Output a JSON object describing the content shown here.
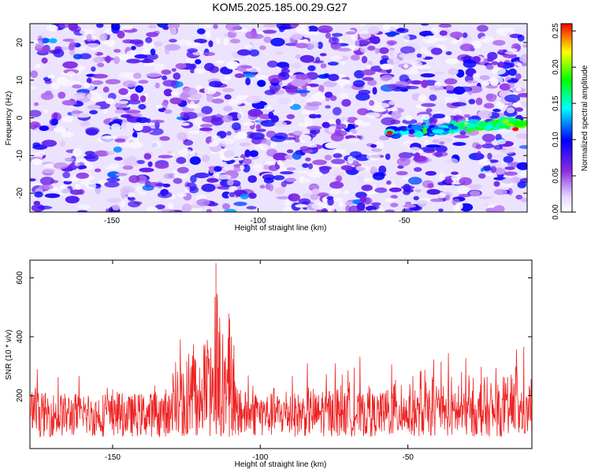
{
  "title": "KOM5.2025.185.00.29.G27",
  "colors": {
    "snr_line": "#ee2222",
    "colormap": [
      "#ffffff",
      "#8a2be2",
      "#0000ff",
      "#00ffff",
      "#00ff00",
      "#ffff00",
      "#ff0000"
    ]
  },
  "chart_data": [
    {
      "type": "heatmap",
      "xlabel": "Height of straight line (km)",
      "ylabel": "Frequency (Hz)",
      "xlim": [
        -178,
        -8
      ],
      "ylim": [
        -25,
        25
      ],
      "xticks": [
        -150,
        -100,
        -50
      ],
      "yticks": [
        -20,
        -10,
        0,
        10,
        20
      ],
      "colorbar": {
        "label": "Normalized spectral amplitude",
        "range": [
          0.0,
          0.26
        ],
        "ticks": [
          "0.00",
          "0.05",
          "0.10",
          "0.15",
          "0.20",
          "0.25"
        ],
        "tick_values": [
          0.0,
          0.05,
          0.1,
          0.15,
          0.2,
          0.25
        ]
      },
      "features": [
        {
          "x_range": [
            -55,
            -8
          ],
          "frequency": -3,
          "peak_x": -12,
          "peak_value": 0.26,
          "trend": "frequency rising from about -4 Hz to 0 Hz"
        }
      ],
      "background_level": [
        0.02,
        0.1
      ]
    },
    {
      "type": "line",
      "xlabel": "Height of straight line (km)",
      "ylabel": "SNR (10 * v/v)",
      "xlim": [
        -178,
        -8
      ],
      "ylim": [
        20,
        660
      ],
      "xticks": [
        -150,
        -100,
        -50
      ],
      "yticks": [
        200,
        400,
        600
      ],
      "series": [
        {
          "x": [
            -178,
            -170,
            -160,
            -150,
            -140,
            -135,
            -130,
            -127,
            -125,
            -122,
            -120,
            -117,
            -115,
            -113,
            -112,
            -110,
            -107,
            -105,
            -100,
            -90,
            -80,
            -70,
            -60,
            -50,
            -45,
            -40,
            -35,
            -30,
            -25,
            -20,
            -15,
            -10,
            -8
          ],
          "values": [
            300,
            280,
            270,
            250,
            280,
            300,
            330,
            420,
            480,
            400,
            350,
            420,
            650,
            440,
            560,
            450,
            380,
            300,
            300,
            310,
            310,
            330,
            340,
            340,
            400,
            340,
            360,
            350,
            350,
            360,
            380,
            370,
            360
          ]
        }
      ],
      "baseline": [
        60,
        190
      ]
    }
  ]
}
